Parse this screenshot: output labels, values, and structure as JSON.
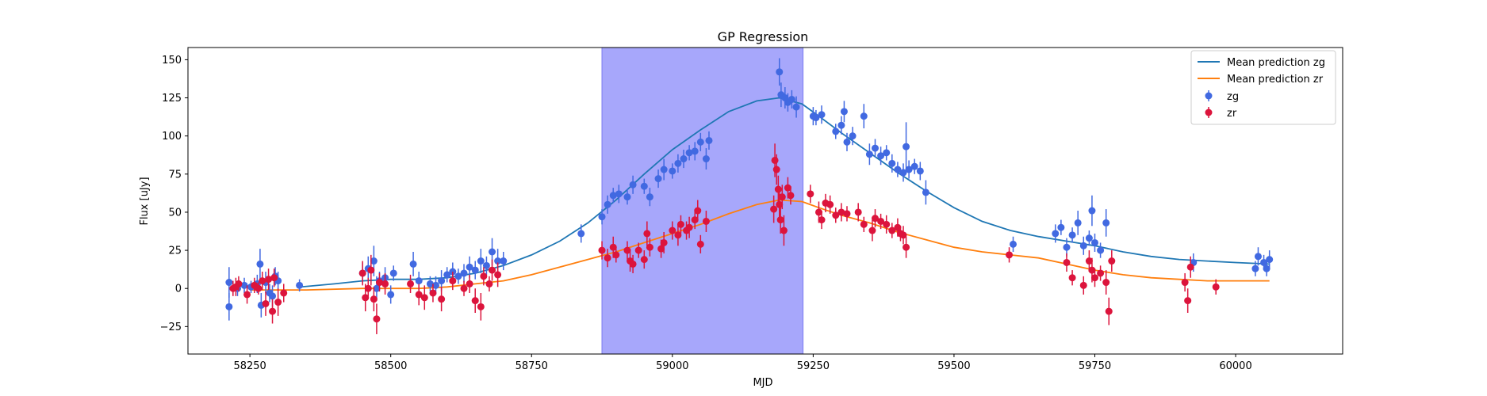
{
  "chart_data": {
    "type": "scatter",
    "title": "GP Regression",
    "xlabel": "MJD",
    "ylabel": "Flux [uJy]",
    "xlim": [
      58140,
      60190
    ],
    "ylim": [
      -43,
      158
    ],
    "x_ticks": [
      58250,
      58500,
      58750,
      59000,
      59250,
      59500,
      59750,
      60000
    ],
    "y_ticks": [
      -25,
      0,
      25,
      50,
      75,
      100,
      125,
      150
    ],
    "legend_position": "top-right",
    "highlight_band": {
      "x0": 58875,
      "x1": 59232,
      "color": "#a7a7fb"
    },
    "colors": {
      "zg_line": "#1f77b4",
      "zr_line": "#ff7f0e",
      "zg_points": "#4169e1",
      "zr_points": "#dc143c"
    },
    "lines": [
      {
        "name": "Mean prediction zg",
        "color": "#1f77b4",
        "x": [
          58340,
          58400,
          58450,
          58500,
          58550,
          58600,
          58650,
          58700,
          58750,
          58800,
          58850,
          58900,
          58950,
          59000,
          59050,
          59100,
          59150,
          59190,
          59230,
          59260,
          59300,
          59350,
          59400,
          59450,
          59500,
          59550,
          59600,
          59650,
          59700,
          59750,
          59800,
          59850,
          59900,
          59950,
          60000,
          60060
        ],
        "y": [
          1,
          3,
          5,
          6,
          6,
          7,
          10,
          15,
          22,
          31,
          43,
          58,
          75,
          91,
          104,
          116,
          123,
          125,
          121,
          113,
          102,
          89,
          76,
          64,
          53,
          44,
          38,
          34,
          31,
          28,
          24,
          21,
          19,
          18,
          17,
          16
        ]
      },
      {
        "name": "Mean prediction zr",
        "color": "#ff7f0e",
        "x": [
          58250,
          58350,
          58450,
          58500,
          58550,
          58600,
          58650,
          58700,
          58750,
          58800,
          58850,
          58900,
          58950,
          59000,
          59050,
          59100,
          59150,
          59190,
          59230,
          59260,
          59300,
          59350,
          59400,
          59450,
          59500,
          59550,
          59600,
          59650,
          59700,
          59750,
          59800,
          59850,
          59900,
          59950,
          60000,
          60060
        ],
        "y": [
          -1,
          -1,
          0,
          0,
          0,
          1,
          3,
          5,
          9,
          14,
          19,
          24,
          30,
          36,
          42,
          49,
          55,
          58,
          57,
          53,
          48,
          43,
          37,
          32,
          27,
          24,
          22,
          20,
          16,
          12,
          9,
          7,
          6,
          5,
          5,
          5
        ]
      }
    ],
    "series": [
      {
        "name": "zg",
        "color": "#4169e1",
        "points": [
          [
            58213,
            4,
            10
          ],
          [
            58213,
            -12,
            9
          ],
          [
            58228,
            0,
            5
          ],
          [
            58240,
            2,
            5
          ],
          [
            58252,
            1,
            4
          ],
          [
            58263,
            3,
            6
          ],
          [
            58268,
            16,
            10
          ],
          [
            58270,
            -11,
            8
          ],
          [
            58278,
            4,
            7
          ],
          [
            58285,
            -3,
            6
          ],
          [
            58290,
            -5,
            7
          ],
          [
            58295,
            8,
            6
          ],
          [
            58300,
            5,
            6
          ],
          [
            58338,
            2,
            4
          ],
          [
            58450,
            10,
            7
          ],
          [
            58460,
            13,
            8
          ],
          [
            58470,
            18,
            10
          ],
          [
            58475,
            0,
            8
          ],
          [
            58480,
            5,
            6
          ],
          [
            58490,
            7,
            7
          ],
          [
            58500,
            -4,
            6
          ],
          [
            58505,
            10,
            5
          ],
          [
            58540,
            16,
            8
          ],
          [
            58550,
            5,
            6
          ],
          [
            58570,
            3,
            5
          ],
          [
            58580,
            2,
            6
          ],
          [
            58590,
            5,
            7
          ],
          [
            58600,
            9,
            5
          ],
          [
            58610,
            11,
            6
          ],
          [
            58620,
            8,
            5
          ],
          [
            58630,
            10,
            6
          ],
          [
            58640,
            14,
            7
          ],
          [
            58650,
            12,
            6
          ],
          [
            58660,
            18,
            8
          ],
          [
            58670,
            15,
            6
          ],
          [
            58680,
            24,
            9
          ],
          [
            58690,
            18,
            8
          ],
          [
            58700,
            18,
            6
          ],
          [
            58838,
            36,
            6
          ],
          [
            58875,
            47,
            5
          ],
          [
            58885,
            55,
            6
          ],
          [
            58895,
            61,
            5
          ],
          [
            58905,
            62,
            6
          ],
          [
            58920,
            60,
            5
          ],
          [
            58930,
            68,
            6
          ],
          [
            58950,
            67,
            5
          ],
          [
            58960,
            60,
            6
          ],
          [
            58975,
            72,
            6
          ],
          [
            58985,
            78,
            7
          ],
          [
            59000,
            77,
            5
          ],
          [
            59010,
            82,
            6
          ],
          [
            59020,
            85,
            6
          ],
          [
            59030,
            89,
            5
          ],
          [
            59040,
            90,
            6
          ],
          [
            59050,
            96,
            6
          ],
          [
            59060,
            85,
            7
          ],
          [
            59065,
            97,
            6
          ],
          [
            59190,
            142,
            9
          ],
          [
            59193,
            127,
            8
          ],
          [
            59200,
            125,
            7
          ],
          [
            59205,
            122,
            6
          ],
          [
            59212,
            124,
            6
          ],
          [
            59220,
            119,
            7
          ],
          [
            59250,
            113,
            6
          ],
          [
            59255,
            112,
            5
          ],
          [
            59265,
            114,
            6
          ],
          [
            59290,
            103,
            5
          ],
          [
            59300,
            107,
            6
          ],
          [
            59305,
            116,
            7
          ],
          [
            59310,
            96,
            6
          ],
          [
            59320,
            100,
            6
          ],
          [
            59340,
            113,
            8
          ],
          [
            59350,
            88,
            7
          ],
          [
            59360,
            92,
            6
          ],
          [
            59370,
            87,
            6
          ],
          [
            59380,
            89,
            5
          ],
          [
            59390,
            82,
            6
          ],
          [
            59400,
            78,
            5
          ],
          [
            59410,
            76,
            6
          ],
          [
            59415,
            93,
            16
          ],
          [
            59420,
            78,
            6
          ],
          [
            59430,
            80,
            5
          ],
          [
            59440,
            77,
            6
          ],
          [
            59450,
            63,
            8
          ],
          [
            59605,
            29,
            5
          ],
          [
            59680,
            36,
            6
          ],
          [
            59690,
            40,
            5
          ],
          [
            59700,
            27,
            6
          ],
          [
            59710,
            35,
            5
          ],
          [
            59720,
            43,
            8
          ],
          [
            59730,
            28,
            6
          ],
          [
            59740,
            33,
            5
          ],
          [
            59745,
            51,
            10
          ],
          [
            59750,
            30,
            6
          ],
          [
            59760,
            25,
            5
          ],
          [
            59770,
            43,
            9
          ],
          [
            59925,
            17,
            6
          ],
          [
            60035,
            13,
            5
          ],
          [
            60040,
            21,
            6
          ],
          [
            60050,
            17,
            5
          ],
          [
            60055,
            13,
            5
          ],
          [
            60060,
            19,
            6
          ]
        ]
      },
      {
        "name": "zr",
        "color": "#dc143c",
        "points": [
          [
            58220,
            0,
            5
          ],
          [
            58225,
            1,
            6
          ],
          [
            58230,
            3,
            5
          ],
          [
            58245,
            -4,
            6
          ],
          [
            58258,
            2,
            5
          ],
          [
            58265,
            0,
            4
          ],
          [
            58272,
            5,
            6
          ],
          [
            58278,
            -10,
            8
          ],
          [
            58283,
            6,
            7
          ],
          [
            58290,
            -15,
            8
          ],
          [
            58293,
            7,
            6
          ],
          [
            58300,
            -9,
            9
          ],
          [
            58310,
            -3,
            6
          ],
          [
            58450,
            10,
            8
          ],
          [
            58455,
            -6,
            9
          ],
          [
            58460,
            0,
            7
          ],
          [
            58465,
            12,
            10
          ],
          [
            58470,
            -7,
            8
          ],
          [
            58475,
            -20,
            10
          ],
          [
            58480,
            4,
            6
          ],
          [
            58490,
            3,
            7
          ],
          [
            58535,
            3,
            6
          ],
          [
            58550,
            -4,
            7
          ],
          [
            58560,
            -6,
            8
          ],
          [
            58575,
            -3,
            6
          ],
          [
            58590,
            -7,
            8
          ],
          [
            58610,
            5,
            6
          ],
          [
            58630,
            0,
            5
          ],
          [
            58640,
            3,
            6
          ],
          [
            58650,
            -8,
            8
          ],
          [
            58660,
            -12,
            9
          ],
          [
            58665,
            8,
            6
          ],
          [
            58675,
            3,
            5
          ],
          [
            58680,
            12,
            7
          ],
          [
            58690,
            9,
            8
          ],
          [
            58875,
            25,
            6
          ],
          [
            58885,
            20,
            6
          ],
          [
            58895,
            27,
            7
          ],
          [
            58900,
            22,
            5
          ],
          [
            58920,
            25,
            6
          ],
          [
            58925,
            18,
            7
          ],
          [
            58930,
            16,
            6
          ],
          [
            58940,
            25,
            5
          ],
          [
            58950,
            19,
            6
          ],
          [
            58955,
            36,
            8
          ],
          [
            58960,
            27,
            6
          ],
          [
            58980,
            26,
            6
          ],
          [
            58985,
            30,
            7
          ],
          [
            59000,
            38,
            6
          ],
          [
            59010,
            35,
            7
          ],
          [
            59015,
            42,
            6
          ],
          [
            59025,
            38,
            6
          ],
          [
            59030,
            40,
            7
          ],
          [
            59040,
            45,
            6
          ],
          [
            59045,
            51,
            7
          ],
          [
            59050,
            29,
            6
          ],
          [
            59060,
            44,
            7
          ],
          [
            59180,
            52,
            9
          ],
          [
            59182,
            84,
            11
          ],
          [
            59185,
            78,
            10
          ],
          [
            59188,
            65,
            9
          ],
          [
            59190,
            55,
            10
          ],
          [
            59192,
            45,
            9
          ],
          [
            59195,
            60,
            8
          ],
          [
            59198,
            38,
            10
          ],
          [
            59205,
            66,
            7
          ],
          [
            59210,
            61,
            6
          ],
          [
            59245,
            62,
            6
          ],
          [
            59260,
            50,
            7
          ],
          [
            59265,
            45,
            6
          ],
          [
            59272,
            56,
            6
          ],
          [
            59280,
            55,
            6
          ],
          [
            59290,
            48,
            5
          ],
          [
            59300,
            50,
            6
          ],
          [
            59310,
            49,
            5
          ],
          [
            59330,
            50,
            6
          ],
          [
            59340,
            42,
            5
          ],
          [
            59355,
            38,
            7
          ],
          [
            59360,
            46,
            6
          ],
          [
            59370,
            44,
            5
          ],
          [
            59380,
            42,
            6
          ],
          [
            59390,
            38,
            5
          ],
          [
            59400,
            40,
            6
          ],
          [
            59405,
            36,
            5
          ],
          [
            59410,
            35,
            6
          ],
          [
            59415,
            27,
            7
          ],
          [
            59598,
            22,
            5
          ],
          [
            59700,
            17,
            6
          ],
          [
            59710,
            7,
            5
          ],
          [
            59730,
            2,
            6
          ],
          [
            59740,
            18,
            7
          ],
          [
            59745,
            12,
            8
          ],
          [
            59750,
            7,
            6
          ],
          [
            59760,
            10,
            5
          ],
          [
            59770,
            4,
            8
          ],
          [
            59775,
            -15,
            9
          ],
          [
            59780,
            18,
            7
          ],
          [
            59910,
            4,
            6
          ],
          [
            59915,
            -8,
            8
          ],
          [
            59920,
            14,
            7
          ],
          [
            59965,
            1,
            5
          ]
        ]
      }
    ]
  }
}
